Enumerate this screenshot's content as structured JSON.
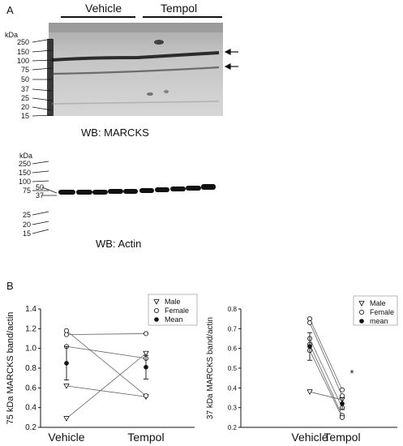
{
  "panel_a": {
    "letter": "A",
    "groups": [
      "Vehicle",
      "Tempol"
    ],
    "marcks_blot": {
      "unit": "kDa",
      "markers": [
        "250",
        "150",
        "100",
        "75",
        "50",
        "37",
        "25",
        "20",
        "15"
      ],
      "caption": "WB: MARCKS"
    },
    "actin_blot": {
      "unit": "kDa",
      "markers_upper": [
        "250",
        "150",
        "100",
        "75"
      ],
      "inner_markers": [
        "50",
        "37"
      ],
      "markers_lower": [
        "25",
        "20",
        "15"
      ],
      "caption": "WB: Actin"
    }
  },
  "panel_b": {
    "letter": "B"
  },
  "chart_data": [
    {
      "type": "scatter",
      "ylabel": "75 kDa MARCKS band/actin",
      "categories": [
        "Vehicle",
        "Tempol"
      ],
      "yticks": [
        "0.2",
        "0.4",
        "0.6",
        "0.8",
        "1.0",
        "1.2",
        "1.4"
      ],
      "ylim": [
        0.2,
        1.4
      ],
      "legend": [
        "Male",
        "Female",
        "Mean"
      ],
      "legend_position": "top-right",
      "subjects": [
        {
          "sex": "Male",
          "values": [
            0.62,
            0.51
          ]
        },
        {
          "sex": "Male",
          "values": [
            0.29,
            0.95
          ]
        },
        {
          "sex": "Female",
          "values": [
            1.18,
            0.52
          ]
        },
        {
          "sex": "Female",
          "values": [
            1.14,
            1.15
          ]
        },
        {
          "sex": "Female",
          "values": [
            1.02,
            0.9
          ]
        }
      ],
      "mean": [
        0.85,
        0.81
      ],
      "error": [
        0.17,
        0.12
      ],
      "annotation": ""
    },
    {
      "type": "scatter",
      "ylabel": "37 kDa MARCKS band/actin",
      "categories": [
        "Vehicle",
        "Tempol"
      ],
      "yticks": [
        "0.2",
        "0.3",
        "0.4",
        "0.5",
        "0.6",
        "0.7",
        "0.8"
      ],
      "ylim": [
        0.2,
        0.8
      ],
      "legend": [
        "Male",
        "Female",
        "mean"
      ],
      "legend_position": "top-right",
      "subjects": [
        {
          "sex": "Male",
          "values": [
            0.38,
            0.34
          ]
        },
        {
          "sex": "Female",
          "values": [
            0.75,
            0.39
          ]
        },
        {
          "sex": "Female",
          "values": [
            0.73,
            0.36
          ]
        },
        {
          "sex": "Female",
          "values": [
            0.65,
            0.3
          ]
        },
        {
          "sex": "Female",
          "values": [
            0.62,
            0.26
          ]
        },
        {
          "sex": "Female",
          "values": [
            0.59,
            0.25
          ]
        }
      ],
      "mean": [
        0.61,
        0.32
      ],
      "error": [
        0.07,
        0.03
      ],
      "annotation": "*"
    }
  ]
}
